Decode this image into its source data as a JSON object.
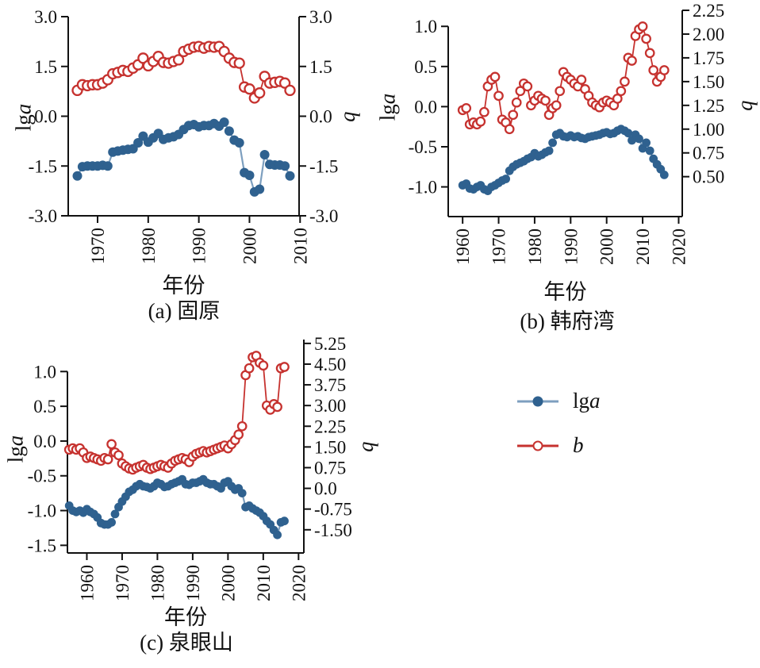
{
  "colors": {
    "b": "#c6322f",
    "lga_marker": "#2f618f",
    "lga_line": "#7d9fbf",
    "axis": "#111111"
  },
  "legend": {
    "position": "bottom-right-quadrant",
    "lga_prefix": "lg",
    "lga_var": "a",
    "b_var": "b"
  },
  "chart_data": [
    {
      "type": "line",
      "panel": "a",
      "title": "(a) 固原",
      "xlabel": "年份",
      "ylabel_left": "lga",
      "ylabel_right": "b",
      "grid": false,
      "x_ticks": [
        1970,
        1980,
        1990,
        2000,
        2010
      ],
      "x_range": [
        1964.2,
        2009.8
      ],
      "left_axis_ticks": [
        "3.0",
        "1.5",
        "0.0",
        "-1.5",
        "-3.0"
      ],
      "right_axis_ticks": [
        "3.0",
        "1.5",
        "0.0",
        "-1.5",
        "-3.0"
      ],
      "left_scale": {
        "top": 3.0,
        "bottom": -3.0
      },
      "right_scale": {
        "top": 3.0,
        "bottom": -3.0
      },
      "years": [
        1966,
        1967,
        1968,
        1969,
        1970,
        1971,
        1972,
        1973,
        1974,
        1975,
        1976,
        1977,
        1978,
        1979,
        1980,
        1981,
        1982,
        1983,
        1984,
        1985,
        1986,
        1987,
        1988,
        1989,
        1990,
        1991,
        1992,
        1993,
        1994,
        1995,
        1996,
        1997,
        1998,
        1999,
        2000,
        2001,
        2002,
        2003,
        2004,
        2005,
        2006,
        2007,
        2008
      ],
      "series": [
        {
          "name": "lga",
          "axis": "left",
          "values": [
            -1.8,
            -1.52,
            -1.5,
            -1.5,
            -1.5,
            -1.48,
            -1.5,
            -1.08,
            -1.05,
            -1.02,
            -1.0,
            -0.98,
            -0.8,
            -0.6,
            -0.78,
            -0.65,
            -0.52,
            -0.7,
            -0.65,
            -0.62,
            -0.55,
            -0.4,
            -0.28,
            -0.25,
            -0.32,
            -0.28,
            -0.28,
            -0.22,
            -0.3,
            -0.18,
            -0.45,
            -0.72,
            -0.8,
            -1.7,
            -1.78,
            -2.28,
            -2.2,
            -1.16,
            -1.45,
            -1.47,
            -1.47,
            -1.5,
            -1.8
          ]
        },
        {
          "name": "b",
          "axis": "right",
          "values": [
            0.78,
            0.95,
            0.92,
            0.95,
            0.95,
            1.0,
            1.1,
            1.28,
            1.32,
            1.38,
            1.35,
            1.45,
            1.55,
            1.75,
            1.52,
            1.65,
            1.8,
            1.62,
            1.6,
            1.65,
            1.7,
            1.95,
            2.02,
            2.08,
            2.1,
            2.05,
            2.1,
            2.08,
            2.1,
            1.95,
            1.75,
            1.62,
            1.6,
            0.88,
            0.82,
            0.55,
            0.7,
            1.2,
            1.0,
            1.02,
            1.05,
            1.0,
            0.78
          ]
        }
      ]
    },
    {
      "type": "line",
      "panel": "b",
      "title": "(b) 韩府湾",
      "xlabel": "年份",
      "ylabel_left": "lga",
      "ylabel_right": "b",
      "grid": false,
      "x_ticks": [
        1960,
        1970,
        1980,
        1990,
        2000,
        2010,
        2020
      ],
      "x_range": [
        1956,
        2021
      ],
      "left_axis_ticks": [
        "1.0",
        "0.5",
        "0.0",
        "-0.5",
        "-1.0"
      ],
      "right_axis_ticks": [
        "2.25",
        "2.00",
        "1.75",
        "1.50",
        "1.25",
        "1.00",
        "0.75",
        "0.50"
      ],
      "left_scale": {
        "top": 1.2,
        "bottom": -1.37
      },
      "right_scale": {
        "top": 2.25,
        "bottom": 0.08
      },
      "years": [
        1960,
        1961,
        1962,
        1963,
        1964,
        1965,
        1966,
        1967,
        1968,
        1969,
        1970,
        1971,
        1972,
        1973,
        1974,
        1975,
        1976,
        1977,
        1978,
        1979,
        1980,
        1981,
        1982,
        1983,
        1984,
        1985,
        1986,
        1987,
        1988,
        1989,
        1990,
        1991,
        1992,
        1993,
        1994,
        1995,
        1996,
        1997,
        1998,
        1999,
        2000,
        2001,
        2002,
        2003,
        2004,
        2005,
        2006,
        2007,
        2008,
        2009,
        2010,
        2011,
        2012,
        2013,
        2014,
        2015,
        2016
      ],
      "series": [
        {
          "name": "lga",
          "axis": "left",
          "values": [
            -0.98,
            -0.96,
            -1.02,
            -1.03,
            -1.0,
            -0.98,
            -1.03,
            -1.05,
            -1.0,
            -0.98,
            -0.95,
            -0.92,
            -0.9,
            -0.8,
            -0.75,
            -0.72,
            -0.7,
            -0.68,
            -0.65,
            -0.63,
            -0.58,
            -0.62,
            -0.6,
            -0.57,
            -0.55,
            -0.45,
            -0.35,
            -0.33,
            -0.37,
            -0.38,
            -0.36,
            -0.38,
            -0.37,
            -0.39,
            -0.4,
            -0.38,
            -0.37,
            -0.36,
            -0.35,
            -0.33,
            -0.32,
            -0.34,
            -0.33,
            -0.3,
            -0.28,
            -0.3,
            -0.33,
            -0.42,
            -0.35,
            -0.4,
            -0.52,
            -0.45,
            -0.55,
            -0.65,
            -0.72,
            -0.78,
            -0.85
          ]
        },
        {
          "name": "b",
          "axis": "right",
          "values": [
            1.2,
            1.22,
            1.05,
            1.07,
            1.05,
            1.08,
            1.18,
            1.45,
            1.52,
            1.55,
            1.35,
            1.1,
            1.07,
            1.0,
            1.15,
            1.28,
            1.4,
            1.48,
            1.45,
            1.25,
            1.3,
            1.35,
            1.32,
            1.3,
            1.15,
            1.22,
            1.25,
            1.4,
            1.6,
            1.55,
            1.52,
            1.48,
            1.45,
            1.52,
            1.42,
            1.35,
            1.28,
            1.25,
            1.23,
            1.28,
            1.3,
            1.28,
            1.25,
            1.32,
            1.4,
            1.5,
            1.75,
            1.72,
            1.98,
            2.05,
            2.08,
            1.95,
            1.8,
            1.62,
            1.5,
            1.55,
            1.62
          ]
        }
      ]
    },
    {
      "type": "line",
      "panel": "c",
      "title": "(c) 泉眼山",
      "xlabel": "年份",
      "ylabel_left": "lga",
      "ylabel_right": "b",
      "grid": false,
      "x_ticks": [
        1960,
        1970,
        1980,
        1990,
        2000,
        2010,
        2020
      ],
      "x_range": [
        1954.5,
        2021.5
      ],
      "left_axis_ticks": [
        "1.0",
        "0.5",
        "0.0",
        "-0.5",
        "-1.0",
        "-1.5"
      ],
      "right_axis_ticks": [
        "5.25",
        "4.50",
        "3.75",
        "3.00",
        "2.25",
        "1.50",
        "0.75",
        "0.0",
        "-0.75",
        "-1.50"
      ],
      "left_scale": {
        "top": 1.46,
        "bottom": -1.61
      },
      "right_scale": {
        "top": 5.39,
        "bottom": -2.34
      },
      "years": [
        1955,
        1956,
        1957,
        1958,
        1959,
        1960,
        1961,
        1962,
        1963,
        1964,
        1965,
        1966,
        1967,
        1968,
        1969,
        1970,
        1971,
        1972,
        1973,
        1974,
        1975,
        1976,
        1977,
        1978,
        1979,
        1980,
        1981,
        1982,
        1983,
        1984,
        1985,
        1986,
        1987,
        1988,
        1989,
        1990,
        1991,
        1992,
        1993,
        1994,
        1995,
        1996,
        1997,
        1998,
        1999,
        2000,
        2001,
        2002,
        2003,
        2004,
        2005,
        2006,
        2007,
        2008,
        2009,
        2010,
        2011,
        2012,
        2013,
        2014,
        2015,
        2016
      ],
      "series": [
        {
          "name": "lga",
          "axis": "left",
          "values": [
            -0.93,
            -1.0,
            -1.02,
            -1.0,
            -1.03,
            -0.98,
            -1.02,
            -1.05,
            -1.1,
            -1.18,
            -1.2,
            -1.2,
            -1.17,
            -1.05,
            -0.95,
            -0.87,
            -0.8,
            -0.73,
            -0.7,
            -0.65,
            -0.62,
            -0.65,
            -0.66,
            -0.68,
            -0.65,
            -0.6,
            -0.62,
            -0.66,
            -0.65,
            -0.62,
            -0.6,
            -0.58,
            -0.55,
            -0.62,
            -0.63,
            -0.6,
            -0.6,
            -0.58,
            -0.55,
            -0.6,
            -0.62,
            -0.62,
            -0.65,
            -0.68,
            -0.6,
            -0.58,
            -0.65,
            -0.7,
            -0.68,
            -0.75,
            -0.95,
            -0.93,
            -0.97,
            -1.0,
            -1.03,
            -1.08,
            -1.15,
            -1.2,
            -1.28,
            -1.35,
            -1.17,
            -1.15
          ]
        },
        {
          "name": "b",
          "axis": "right",
          "values": [
            1.4,
            1.45,
            1.4,
            1.45,
            1.3,
            1.1,
            1.15,
            1.1,
            1.05,
            1.0,
            1.1,
            1.05,
            1.6,
            1.3,
            1.2,
            0.9,
            0.8,
            0.72,
            0.68,
            0.75,
            0.8,
            0.85,
            0.75,
            0.7,
            0.75,
            0.8,
            0.85,
            0.8,
            0.75,
            0.9,
            1.0,
            1.05,
            1.1,
            1.05,
            0.95,
            1.15,
            1.25,
            1.3,
            1.35,
            1.3,
            1.35,
            1.4,
            1.45,
            1.5,
            1.55,
            1.45,
            1.6,
            1.75,
            1.95,
            2.25,
            4.1,
            4.35,
            4.75,
            4.8,
            4.55,
            4.45,
            3.0,
            2.85,
            3.05,
            2.95,
            4.35,
            4.4
          ]
        }
      ]
    }
  ]
}
